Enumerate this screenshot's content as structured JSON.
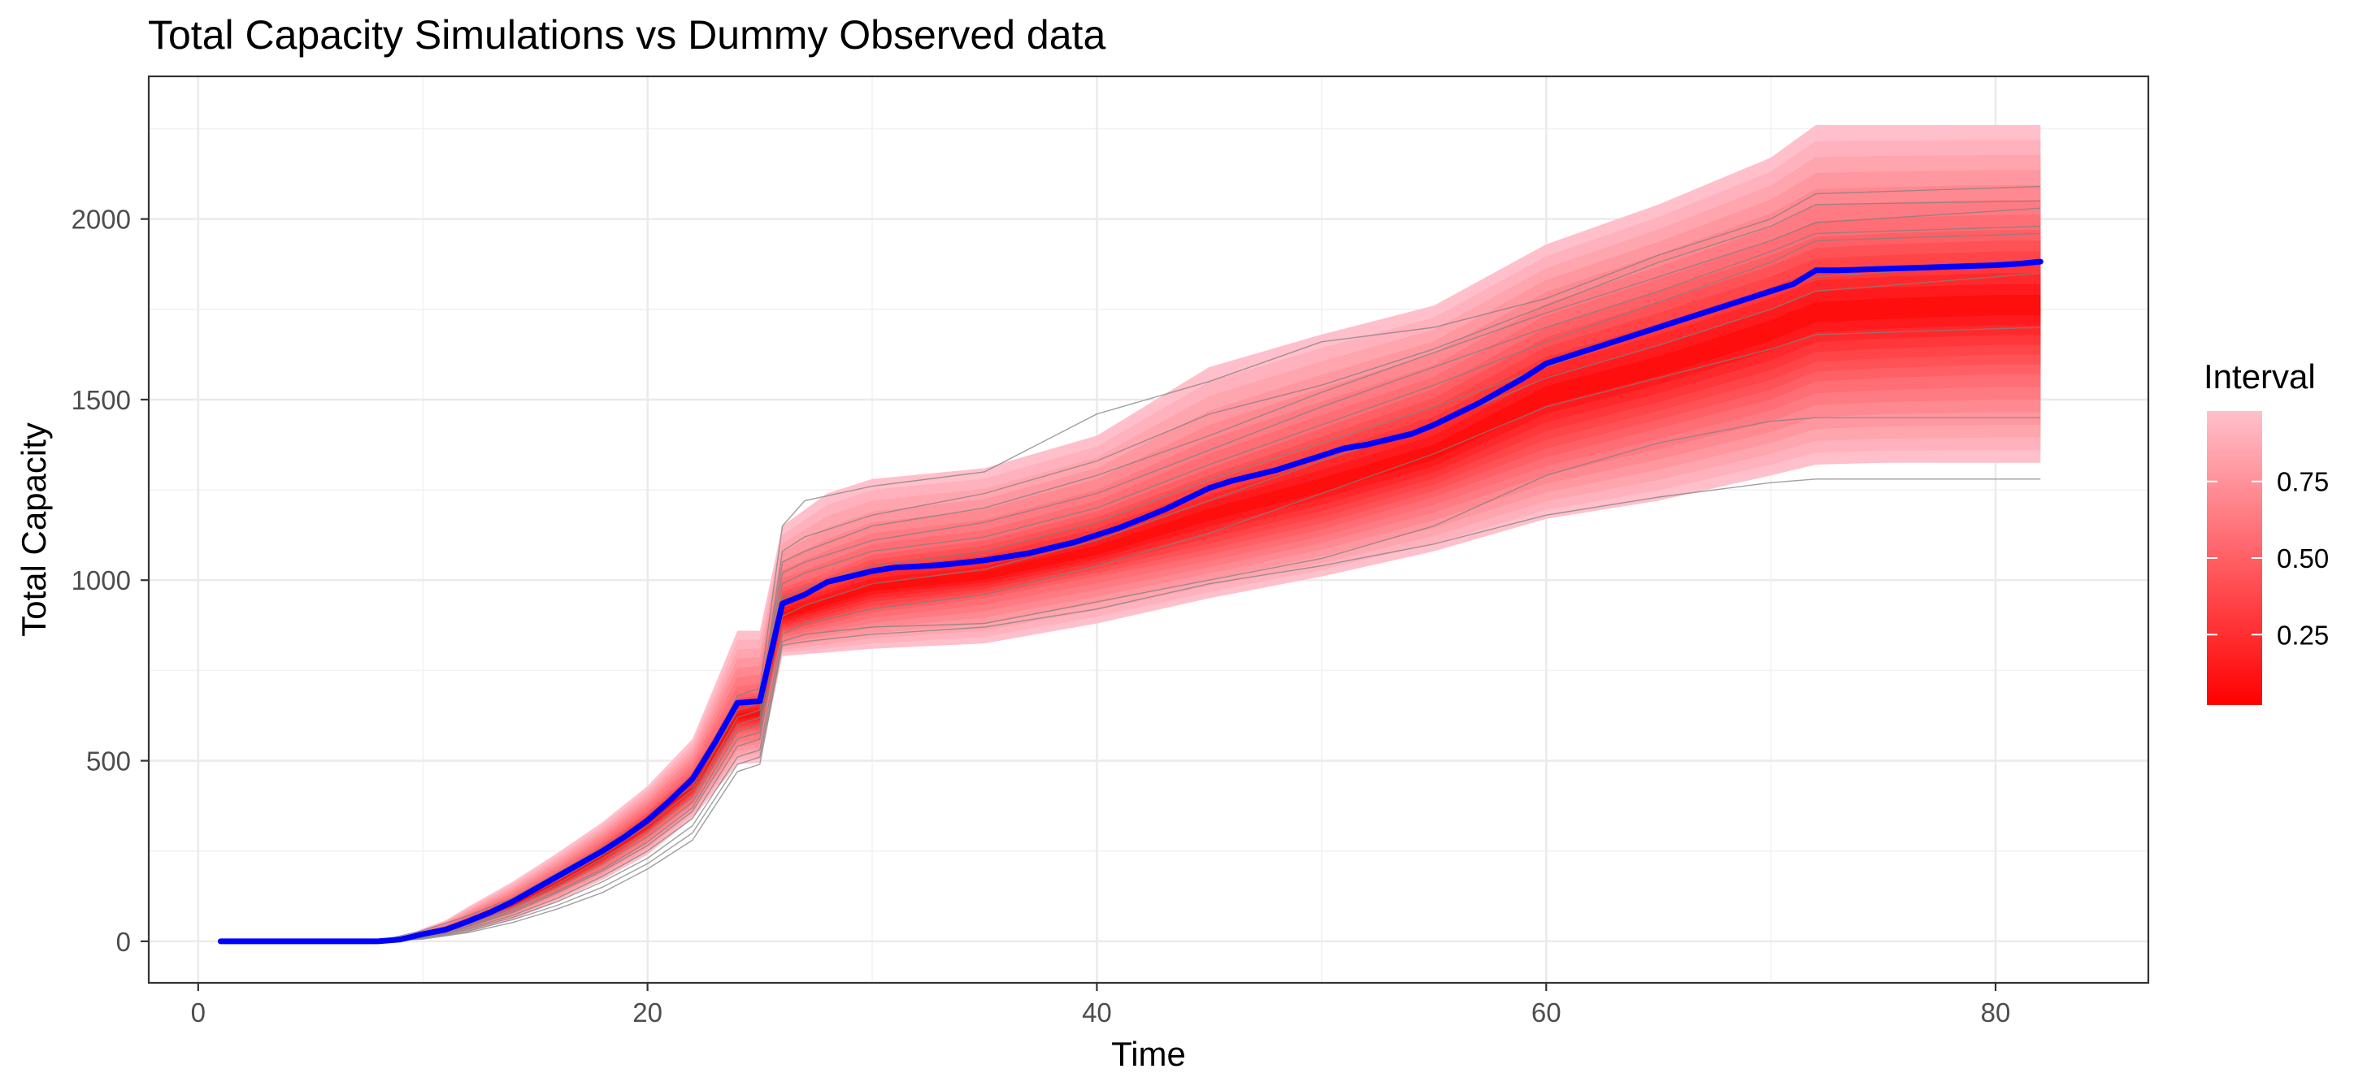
{
  "chart_data": {
    "type": "line",
    "title": "Total Capacity Simulations vs Dummy Observed data",
    "xlabel": "Time",
    "ylabel": "Total Capacity",
    "xlim": [
      -2.2,
      86.8
    ],
    "ylim": [
      -115,
      2395
    ],
    "x_ticks": [
      0,
      20,
      40,
      60,
      80
    ],
    "y_ticks": [
      0,
      500,
      1000,
      1500,
      2000
    ],
    "grid": true,
    "legend": {
      "title": "Interval",
      "placement": "right",
      "type": "colorbar",
      "ticks": [
        0.25,
        0.5,
        0.75
      ],
      "tick_labels": [
        "0.25",
        "0.50",
        "0.75"
      ],
      "range": [
        0.02,
        0.98
      ],
      "color_low": "#ff0000",
      "color_high": "#ffc0cb"
    },
    "band": {
      "x": [
        1,
        8,
        9,
        10,
        11,
        12,
        14,
        16,
        18,
        20,
        22,
        24,
        25,
        26,
        28,
        30,
        35,
        40,
        45,
        50,
        55,
        60,
        65,
        70,
        72,
        75,
        80,
        82
      ],
      "p02": [
        0,
        0,
        0,
        8,
        15,
        25,
        60,
        110,
        170,
        240,
        340,
        490,
        495,
        790,
        800,
        810,
        825,
        880,
        950,
        1010,
        1080,
        1170,
        1220,
        1290,
        1320,
        1325,
        1325,
        1325
      ],
      "p25": [
        0,
        0,
        1,
        15,
        25,
        45,
        90,
        145,
        210,
        295,
        395,
        575,
        585,
        850,
        880,
        910,
        950,
        1010,
        1070,
        1140,
        1230,
        1340,
        1420,
        1500,
        1550,
        1560,
        1570,
        1570
      ],
      "p50": [
        0,
        0,
        2,
        18,
        30,
        52,
        100,
        162,
        234,
        320,
        428,
        622,
        632,
        900,
        940,
        980,
        1010,
        1080,
        1180,
        1260,
        1350,
        1510,
        1590,
        1690,
        1740,
        1750,
        1760,
        1760
      ],
      "p75": [
        0,
        0,
        4,
        24,
        40,
        65,
        120,
        190,
        270,
        360,
        470,
        680,
        690,
        980,
        1020,
        1070,
        1110,
        1190,
        1310,
        1420,
        1530,
        1700,
        1800,
        1900,
        1950,
        1960,
        1970,
        1970
      ],
      "p98": [
        0,
        0,
        8,
        35,
        58,
        95,
        165,
        245,
        330,
        430,
        560,
        860,
        860,
        1150,
        1240,
        1280,
        1310,
        1400,
        1590,
        1680,
        1760,
        1930,
        2040,
        2170,
        2260,
        2260,
        2260,
        2260
      ]
    },
    "series": [
      {
        "name": "",
        "role": "observed",
        "color": "#0000ff",
        "x": [
          1,
          8,
          9,
          10,
          11,
          12,
          13,
          14,
          15,
          16,
          17,
          18,
          19,
          20,
          21,
          22,
          23,
          24,
          25,
          26,
          27,
          28,
          29,
          30,
          31,
          32,
          33,
          34,
          35,
          36,
          37,
          38,
          39,
          40,
          41,
          42,
          43,
          44,
          45,
          46,
          47,
          48,
          49,
          50,
          51,
          52,
          53,
          54,
          55,
          56,
          57,
          58,
          59,
          60,
          61,
          62,
          63,
          64,
          65,
          66,
          67,
          68,
          69,
          70,
          71,
          72,
          73,
          74,
          75,
          76,
          77,
          78,
          79,
          80,
          81,
          82
        ],
        "values": [
          0,
          0,
          5,
          20,
          32,
          55,
          80,
          110,
          145,
          180,
          215,
          250,
          290,
          335,
          390,
          450,
          550,
          660,
          665,
          935,
          960,
          995,
          1010,
          1025,
          1035,
          1038,
          1042,
          1048,
          1055,
          1065,
          1075,
          1090,
          1105,
          1125,
          1145,
          1170,
          1195,
          1225,
          1255,
          1275,
          1290,
          1305,
          1325,
          1345,
          1365,
          1375,
          1390,
          1405,
          1430,
          1460,
          1490,
          1525,
          1560,
          1600,
          1620,
          1640,
          1660,
          1680,
          1700,
          1720,
          1740,
          1760,
          1780,
          1800,
          1820,
          1858,
          1858,
          1860,
          1862,
          1864,
          1866,
          1868,
          1870,
          1872,
          1876,
          1882
        ]
      }
    ],
    "simulations": {
      "x": [
        1,
        8,
        10,
        12,
        14,
        16,
        18,
        20,
        22,
        24,
        25,
        26,
        27,
        30,
        35,
        40,
        45,
        50,
        55,
        60,
        65,
        70,
        72,
        82
      ],
      "runs": [
        [
          0,
          0,
          30,
          70,
          120,
          190,
          260,
          340,
          430,
          680,
          700,
          1150,
          1220,
          1260,
          1300,
          1460,
          1550,
          1660,
          1700,
          1780,
          1900,
          2000,
          2070,
          2090
        ],
        [
          0,
          0,
          25,
          55,
          105,
          170,
          240,
          320,
          420,
          640,
          660,
          1080,
          1120,
          1180,
          1240,
          1330,
          1460,
          1540,
          1640,
          1760,
          1880,
          1980,
          2040,
          2050
        ],
        [
          0,
          0,
          20,
          50,
          95,
          160,
          230,
          305,
          400,
          620,
          640,
          1050,
          1080,
          1150,
          1200,
          1290,
          1400,
          1520,
          1630,
          1740,
          1840,
          1940,
          1990,
          2030
        ],
        [
          0,
          0,
          18,
          46,
          90,
          150,
          215,
          290,
          385,
          600,
          620,
          1020,
          1050,
          1110,
          1160,
          1240,
          1360,
          1480,
          1590,
          1700,
          1800,
          1910,
          1960,
          1980
        ],
        [
          0,
          0,
          16,
          42,
          85,
          140,
          200,
          275,
          370,
          580,
          600,
          990,
          1020,
          1080,
          1120,
          1200,
          1320,
          1430,
          1540,
          1660,
          1770,
          1880,
          1940,
          1960
        ],
        [
          0,
          0,
          14,
          40,
          80,
          135,
          195,
          265,
          360,
          560,
          580,
          950,
          980,
          1040,
          1080,
          1160,
          1280,
          1380,
          1480,
          1590,
          1700,
          1800,
          1840,
          1880
        ],
        [
          0,
          0,
          12,
          36,
          72,
          120,
          180,
          250,
          340,
          540,
          560,
          900,
          930,
          990,
          1030,
          1110,
          1220,
          1330,
          1430,
          1560,
          1650,
          1750,
          1800,
          1850
        ],
        [
          0,
          0,
          10,
          32,
          66,
          110,
          165,
          230,
          320,
          510,
          530,
          850,
          880,
          920,
          960,
          1040,
          1130,
          1240,
          1350,
          1480,
          1560,
          1640,
          1680,
          1700
        ],
        [
          0,
          0,
          8,
          28,
          60,
          100,
          150,
          215,
          300,
          490,
          510,
          830,
          850,
          870,
          880,
          940,
          1000,
          1060,
          1150,
          1290,
          1380,
          1440,
          1450,
          1450
        ],
        [
          0,
          0,
          6,
          24,
          52,
          90,
          135,
          200,
          280,
          470,
          490,
          820,
          830,
          850,
          870,
          920,
          990,
          1040,
          1100,
          1180,
          1230,
          1270,
          1280,
          1280
        ]
      ]
    }
  }
}
